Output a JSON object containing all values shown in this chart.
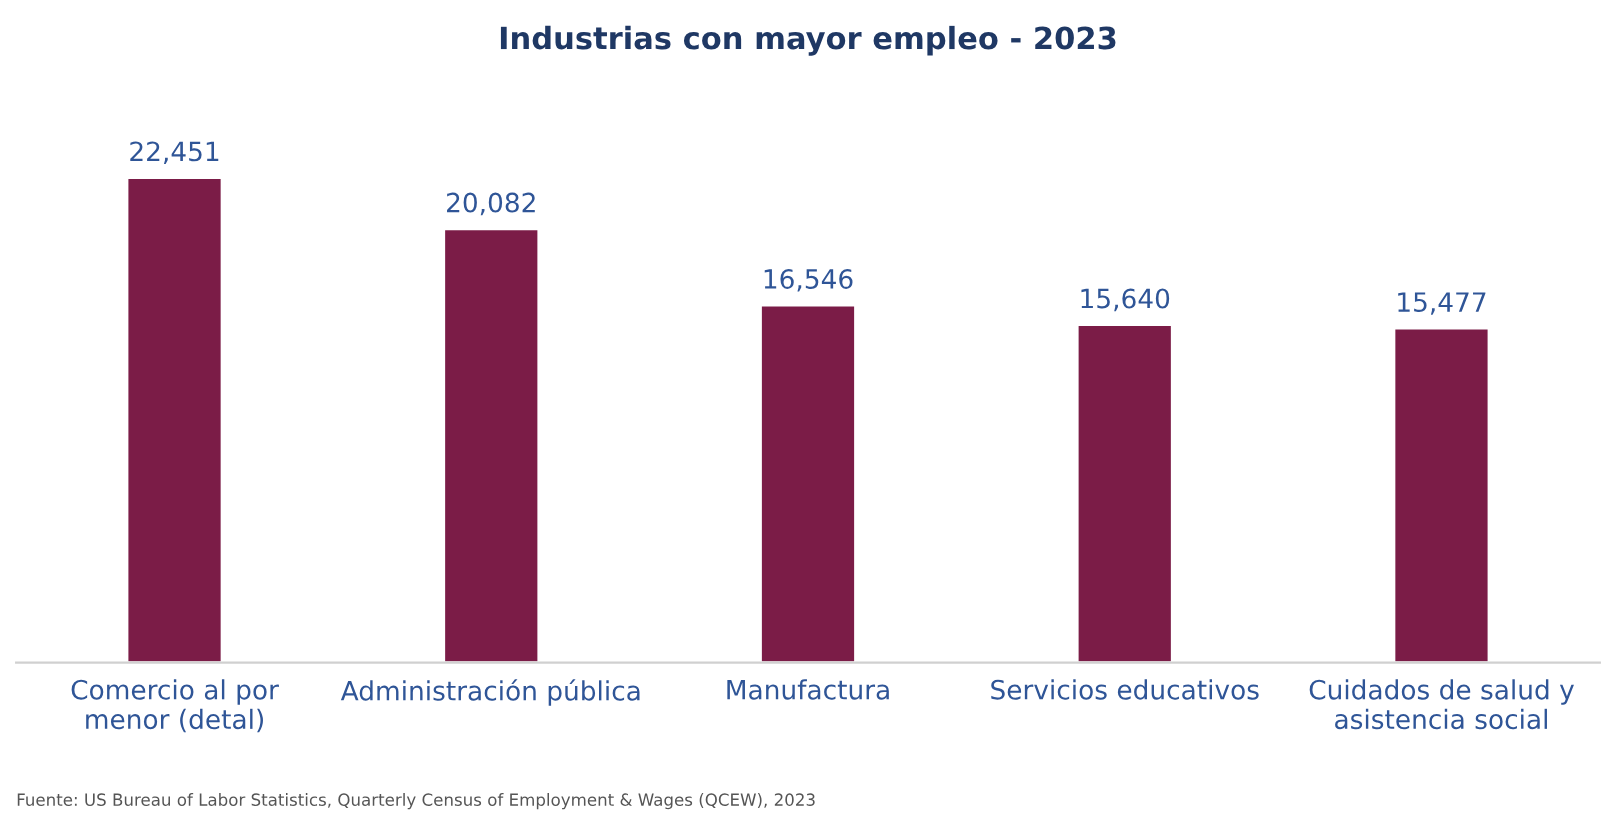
{
  "chart_data": {
    "type": "bar",
    "title": "Industrias con mayor empleo - 2023",
    "categories": [
      "Comercio al por\nmenor (detal)",
      "Administración pública",
      "Manufactura",
      "Servicios educativos",
      "Cuidados de salud y\nasistencia social"
    ],
    "values": [
      22451,
      20082,
      16546,
      15640,
      15477
    ],
    "color": "#7b1c47",
    "value_labels": [
      "22,451",
      "20,082",
      "16,546",
      "15,640",
      "15,477"
    ],
    "annotations": [
      "Fuente: US Bureau of Labor Statistics, Quarterly Census of Employment & Wages (QCEW), 2023"
    ]
  }
}
